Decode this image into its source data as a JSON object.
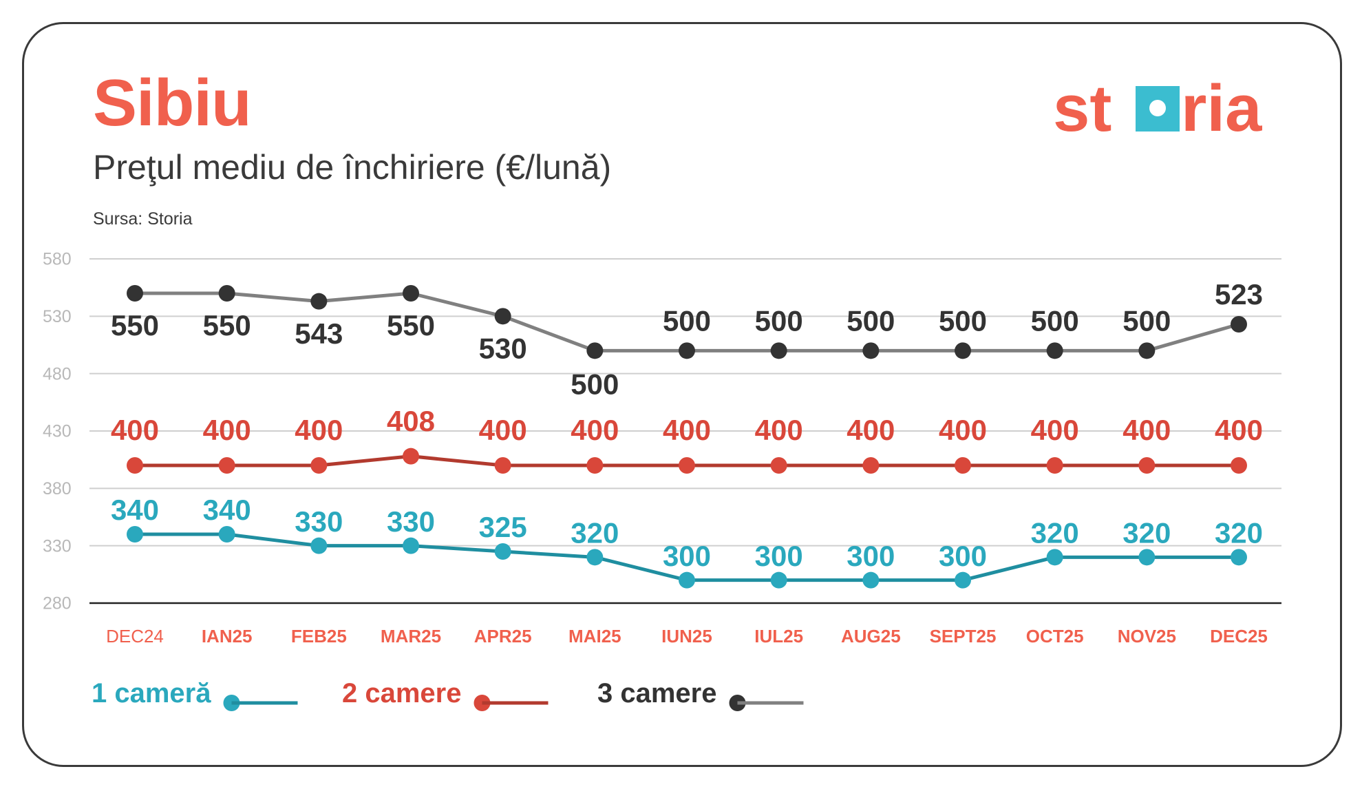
{
  "header": {
    "title": "Sibiu",
    "subtitle": "Preţul mediu de închiriere (€/lună)",
    "source": "Sursa: Storia"
  },
  "brand": {
    "logo_text_left": "st",
    "logo_text_right": "ria",
    "color_primary": "#f0604d",
    "color_accent": "#3bbdd0"
  },
  "chart_data": {
    "type": "line",
    "title": "Preţul mediu de închiriere (€/lună)",
    "xlabel": "",
    "ylabel": "",
    "ylim": [
      280,
      580
    ],
    "yticks": [
      280,
      330,
      380,
      430,
      480,
      530,
      580
    ],
    "grid": true,
    "legend_position": "bottom-left",
    "categories": [
      "DEC24",
      "IAN25",
      "FEB25",
      "MAR25",
      "APR25",
      "MAI25",
      "IUN25",
      "IUL25",
      "AUG25",
      "SEPT25",
      "OCT25",
      "NOV25",
      "DEC25"
    ],
    "series": [
      {
        "name": "1 cameră",
        "values": [
          340,
          340,
          330,
          330,
          325,
          320,
          300,
          300,
          300,
          300,
          320,
          320,
          320
        ],
        "line_color": "#1f8ea0",
        "point_color": "#2aa8bd",
        "label_color": "#2aa8bd"
      },
      {
        "name": "2 camere",
        "values": [
          400,
          400,
          400,
          408,
          400,
          400,
          400,
          400,
          400,
          400,
          400,
          400,
          400
        ],
        "line_color": "#b23a2e",
        "point_color": "#d9473a",
        "label_color": "#d9473a"
      },
      {
        "name": "3 camere",
        "values": [
          550,
          550,
          543,
          550,
          530,
          500,
          500,
          500,
          500,
          500,
          500,
          500,
          523
        ],
        "line_color": "#808080",
        "point_color": "#333333",
        "label_color": "#333333"
      }
    ]
  }
}
